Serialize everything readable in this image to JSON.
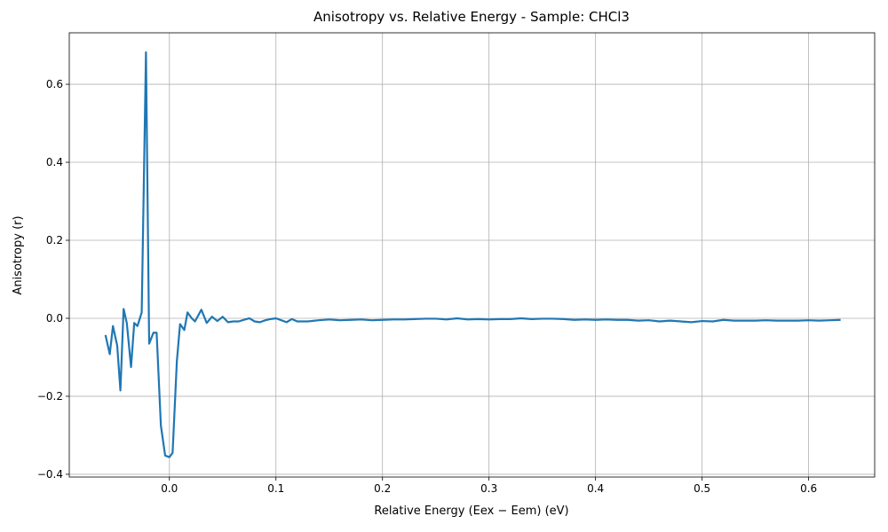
{
  "chart_data": {
    "type": "line",
    "title": "Anisotropy vs. Relative Energy - Sample: CHCl3",
    "x_label": "Relative Energy (Eex − Eem) (eV)",
    "y_label": "Anisotropy (r)",
    "color": "#1f77b4",
    "grid": true,
    "xlim": [
      -0.094,
      0.662
    ],
    "ylim": [
      -0.407,
      0.732
    ],
    "xticks": [
      {
        "value": 0,
        "label": "0.0"
      },
      {
        "value": 0.1,
        "label": "0.1"
      },
      {
        "value": 0.2,
        "label": "0.2"
      },
      {
        "value": 0.3,
        "label": "0.3"
      },
      {
        "value": 0.4,
        "label": "0.4"
      },
      {
        "value": 0.5,
        "label": "0.5"
      },
      {
        "value": 0.6,
        "label": "0.6"
      }
    ],
    "yticks": [
      {
        "value": -0.4,
        "label": "−0.4"
      },
      {
        "value": -0.2,
        "label": "−0.2"
      },
      {
        "value": 0,
        "label": "0.0"
      },
      {
        "value": 0.2,
        "label": "0.2"
      },
      {
        "value": 0.4,
        "label": "0.4"
      },
      {
        "value": 0.6,
        "label": "0.6"
      }
    ],
    "x": [
      -0.06,
      -0.056,
      -0.053,
      -0.049,
      -0.046,
      -0.043,
      -0.04,
      -0.036,
      -0.033,
      -0.03,
      -0.026,
      -0.022,
      -0.019,
      -0.015,
      -0.012,
      -0.008,
      -0.004,
      0.0,
      0.003,
      0.007,
      0.01,
      0.014,
      0.017,
      0.021,
      0.024,
      0.03,
      0.035,
      0.04,
      0.045,
      0.05,
      0.055,
      0.06,
      0.065,
      0.07,
      0.075,
      0.08,
      0.085,
      0.09,
      0.095,
      0.1,
      0.105,
      0.11,
      0.115,
      0.12,
      0.13,
      0.14,
      0.15,
      0.16,
      0.17,
      0.18,
      0.19,
      0.2,
      0.21,
      0.22,
      0.23,
      0.24,
      0.25,
      0.26,
      0.27,
      0.28,
      0.29,
      0.3,
      0.31,
      0.32,
      0.33,
      0.34,
      0.35,
      0.36,
      0.37,
      0.38,
      0.39,
      0.4,
      0.41,
      0.42,
      0.43,
      0.44,
      0.45,
      0.46,
      0.47,
      0.48,
      0.49,
      0.5,
      0.51,
      0.52,
      0.53,
      0.54,
      0.55,
      0.56,
      0.57,
      0.58,
      0.59,
      0.6,
      0.61,
      0.62,
      0.63
    ],
    "values": [
      -0.043,
      -0.092,
      -0.02,
      -0.07,
      -0.185,
      0.024,
      -0.012,
      -0.125,
      -0.012,
      -0.02,
      0.015,
      0.682,
      -0.065,
      -0.037,
      -0.037,
      -0.275,
      -0.352,
      -0.356,
      -0.345,
      -0.11,
      -0.015,
      -0.03,
      0.015,
      0.0,
      -0.008,
      0.022,
      -0.012,
      0.004,
      -0.007,
      0.004,
      -0.01,
      -0.008,
      -0.008,
      -0.004,
      0.0,
      -0.008,
      -0.01,
      -0.005,
      -0.002,
      0.0,
      -0.005,
      -0.01,
      -0.002,
      -0.008,
      -0.008,
      -0.005,
      -0.003,
      -0.005,
      -0.004,
      -0.003,
      -0.005,
      -0.004,
      -0.003,
      -0.003,
      -0.002,
      -0.001,
      -0.001,
      -0.003,
      0.0,
      -0.003,
      -0.002,
      -0.003,
      -0.002,
      -0.002,
      0.0,
      -0.002,
      -0.001,
      -0.001,
      -0.002,
      -0.004,
      -0.003,
      -0.004,
      -0.003,
      -0.004,
      -0.004,
      -0.006,
      -0.005,
      -0.008,
      -0.006,
      -0.008,
      -0.01,
      -0.007,
      -0.008,
      -0.004,
      -0.006,
      -0.006,
      -0.006,
      -0.005,
      -0.006,
      -0.006,
      -0.006,
      -0.005,
      -0.006,
      -0.005,
      -0.004
    ]
  }
}
